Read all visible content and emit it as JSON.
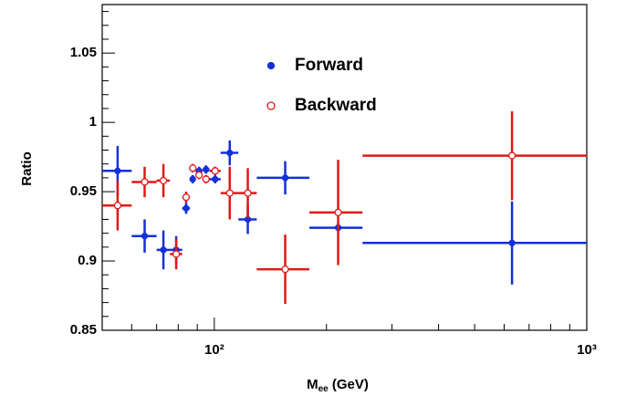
{
  "chart_data": {
    "type": "errorbar",
    "xlog": true,
    "ylabel": "Ratio",
    "xlabel_parts": [
      "M",
      "ee",
      " (GeV)"
    ],
    "xlim": [
      50,
      1000
    ],
    "ylim": [
      0.85,
      1.085
    ],
    "xticks": [
      {
        "value": 100,
        "label": "10²"
      },
      {
        "value": 1000,
        "label": "10³"
      }
    ],
    "xminorticks": [
      60,
      70,
      80,
      90,
      200,
      300,
      400,
      500,
      600,
      700,
      800,
      900
    ],
    "yticks": [
      0.85,
      0.9,
      0.95,
      1,
      1.05
    ],
    "yminorticks": [
      0.86,
      0.87,
      0.88,
      0.89,
      0.91,
      0.92,
      0.93,
      0.94,
      0.96,
      0.97,
      0.98,
      0.99,
      1.01,
      1.02,
      1.03,
      1.04,
      1.06,
      1.07,
      1.08
    ],
    "x": [
      55,
      65,
      73,
      79,
      84,
      87.5,
      91,
      95,
      100.5,
      110,
      123,
      155,
      215,
      630
    ],
    "x_low": [
      50,
      60,
      70,
      76,
      82,
      86,
      89,
      93,
      97,
      104,
      116,
      130,
      180,
      250
    ],
    "x_high": [
      60,
      70,
      76,
      82,
      86,
      89,
      93,
      97,
      104,
      116,
      130,
      180,
      250,
      1000
    ],
    "series": [
      {
        "name": "Forward",
        "color": "#1430d8",
        "marker": "filled",
        "values": [
          0.965,
          0.918,
          0.908,
          0.908,
          0.938,
          0.959,
          0.965,
          0.966,
          0.959,
          0.978,
          0.93,
          0.96,
          0.924,
          0.913
        ],
        "errors": [
          0.018,
          0.012,
          0.014,
          0.01,
          0.004,
          0.003,
          0.003,
          0.003,
          0.003,
          0.009,
          0.0105,
          0.012,
          0.003,
          0.03
        ]
      },
      {
        "name": "Backward",
        "color": "#e01818",
        "marker": "open",
        "values": [
          0.94,
          0.957,
          0.958,
          0.905,
          0.946,
          0.967,
          0.962,
          0.959,
          0.965,
          0.949,
          0.949,
          0.894,
          0.935,
          0.976
        ],
        "errors": [
          0.018,
          0.011,
          0.012,
          0.011,
          0.004,
          0.003,
          0.003,
          0.003,
          0.003,
          0.019,
          0.018,
          0.025,
          0.038,
          0.032
        ]
      }
    ]
  }
}
